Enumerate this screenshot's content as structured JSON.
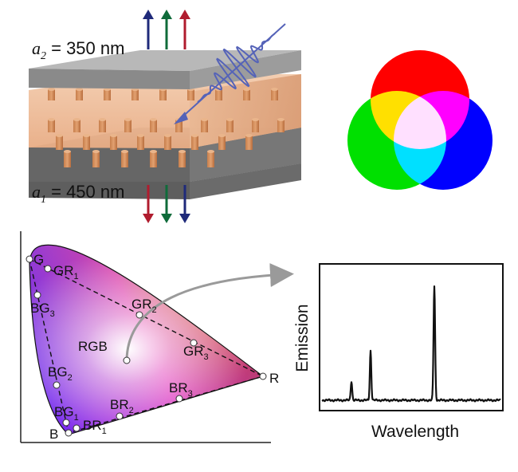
{
  "lattice_labels": {
    "top": {
      "symbol": "a",
      "subscript": "2",
      "text": " = 350 nm"
    },
    "bottom": {
      "symbol": "a",
      "subscript": "1",
      "text": " = 450 nm"
    }
  },
  "chromaticity": {
    "center_label": "RGB",
    "points": [
      {
        "name": "G",
        "sub": ""
      },
      {
        "name": "GR",
        "sub": "1"
      },
      {
        "name": "GR",
        "sub": "2"
      },
      {
        "name": "GR",
        "sub": "3"
      },
      {
        "name": "R",
        "sub": ""
      },
      {
        "name": "BR",
        "sub": "3"
      },
      {
        "name": "BR",
        "sub": "2"
      },
      {
        "name": "BR",
        "sub": "1"
      },
      {
        "name": "B",
        "sub": ""
      },
      {
        "name": "BG",
        "sub": "1"
      },
      {
        "name": "BG",
        "sub": "2"
      },
      {
        "name": "BG",
        "sub": "3"
      }
    ]
  },
  "emission_plot": {
    "ylabel": "Emission",
    "xlabel": "Wavelength"
  },
  "colors": {
    "red": "#ff0000",
    "green": "#00d000",
    "blue": "#0000ff",
    "arrow_blue": "#1f2a7a",
    "arrow_green": "#0f6b3a",
    "arrow_red": "#b01c2e",
    "pump": "#5563b8"
  }
}
